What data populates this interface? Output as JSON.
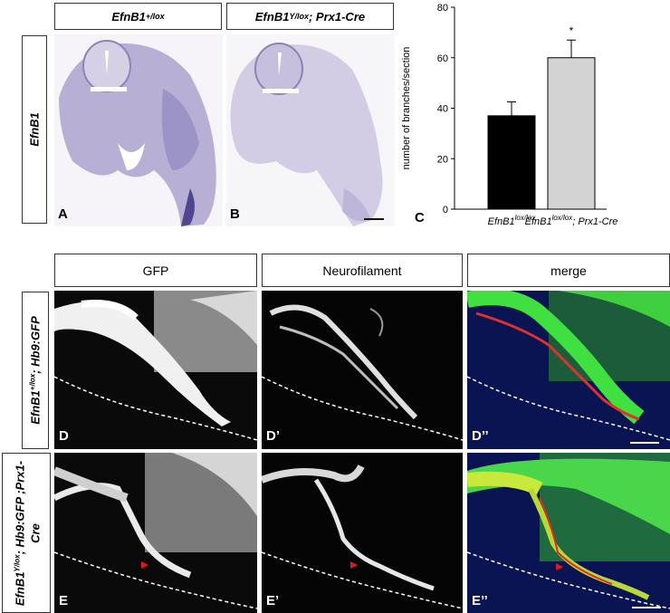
{
  "top_headers": {
    "a": "EfnB1",
    "a_sup": "+/lox",
    "b": "EfnB1",
    "b_sup": "Y/lox",
    "b_rest": "; Prx1-Cre"
  },
  "row_label_top": "EfnB1",
  "row_label_d": {
    "gene": "EfnB1",
    "sup": "+/lox",
    "rest": "; Hb9:GFP"
  },
  "row_label_e": {
    "gene": "EfnB1",
    "sup": "Y/lox",
    "rest": "; Hb9:GFP ;Prx1-Cre"
  },
  "column_headers": [
    "GFP",
    "Neurofilament",
    "merge"
  ],
  "panel_labels": [
    "A",
    "B",
    "C",
    "D",
    "D’",
    "D’’",
    "E",
    "E’",
    "E’’"
  ],
  "chart_data": {
    "type": "bar",
    "ylabel": "number of  branches/section",
    "ylim": [
      0,
      80
    ],
    "yticks": [
      0,
      20,
      40,
      60,
      80
    ],
    "categories": [
      {
        "gene": "EfnB1",
        "sup": "lox/lox",
        "rest": ""
      },
      {
        "gene": "EfnB1",
        "sup": "lox/lox",
        "rest": "; Prx1-Cre"
      }
    ],
    "values": [
      37,
      60
    ],
    "errors": [
      5.5,
      7
    ],
    "colors": [
      "#000000",
      "#d3d3d3"
    ],
    "annotations": [
      "",
      "*"
    ]
  }
}
